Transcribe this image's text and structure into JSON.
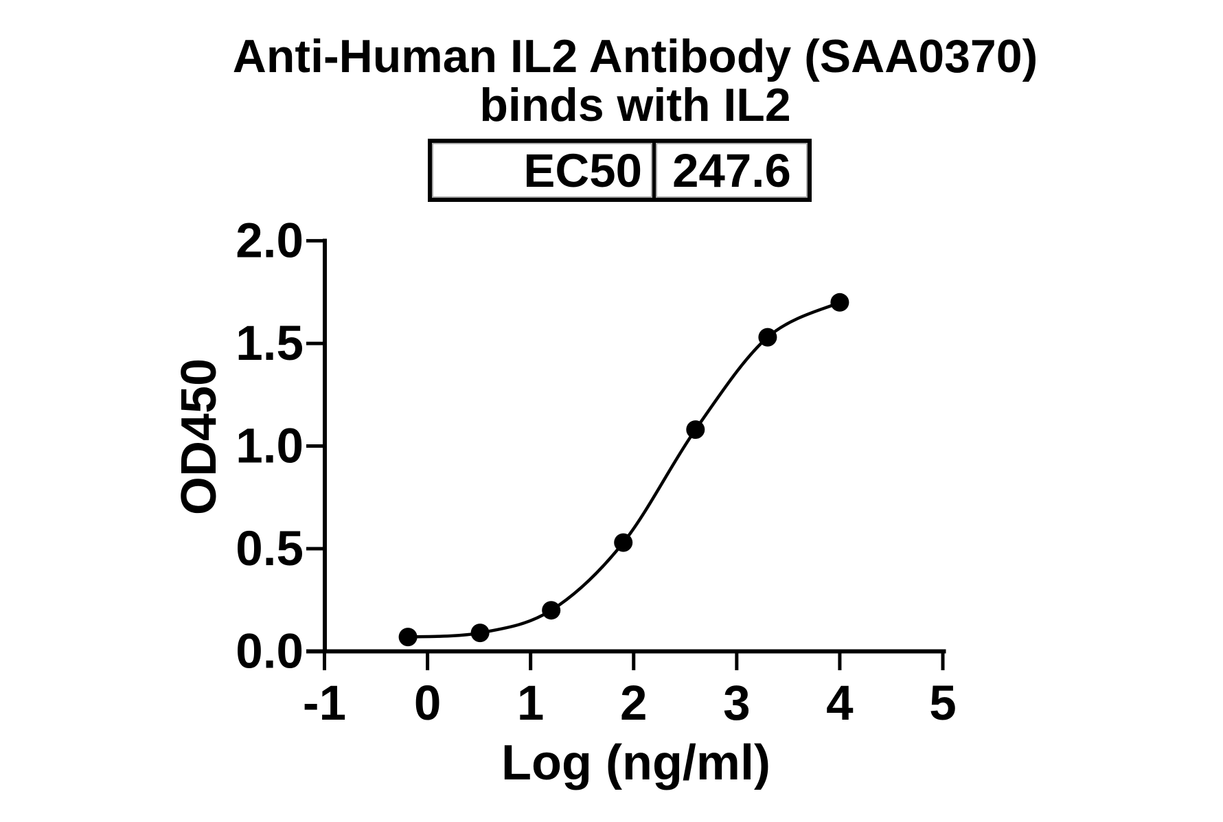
{
  "title": {
    "line1": "Anti-Human IL2 Antibody (SAA0370)",
    "line2": "binds with IL2"
  },
  "ec50_table": {
    "label": "EC50",
    "value": "247.6"
  },
  "chart_data": {
    "type": "line",
    "title": "Anti-Human IL2 Antibody (SAA0370) binds with IL2",
    "xlabel": "Log (ng/ml)",
    "ylabel": "OD450",
    "xlim": [
      -1,
      5
    ],
    "ylim": [
      0,
      2
    ],
    "x_ticks": [
      -1,
      0,
      1,
      2,
      3,
      4,
      5
    ],
    "x_tick_labels": [
      "-1",
      "0",
      "1",
      "2",
      "3",
      "4",
      "5"
    ],
    "y_ticks": [
      0,
      0.5,
      1,
      1.5,
      2
    ],
    "y_tick_labels": [
      "0.0",
      "0.5",
      "1.0",
      "1.5",
      "2.0"
    ],
    "grid": false,
    "legend": false,
    "marker": "filled-circle",
    "line_color": "#000000",
    "marker_color": "#000000",
    "ec50": 247.6,
    "series": [
      {
        "name": "Anti-Human IL2 Antibody (SAA0370)",
        "x": [
          -0.19,
          0.51,
          1.2,
          1.9,
          2.6,
          3.3,
          4.0
        ],
        "y": [
          0.07,
          0.09,
          0.2,
          0.53,
          1.08,
          1.53,
          1.7
        ]
      }
    ]
  },
  "colors": {
    "foreground": "#000000",
    "background": "#ffffff",
    "table_inner_border": "#a9a9a9"
  }
}
